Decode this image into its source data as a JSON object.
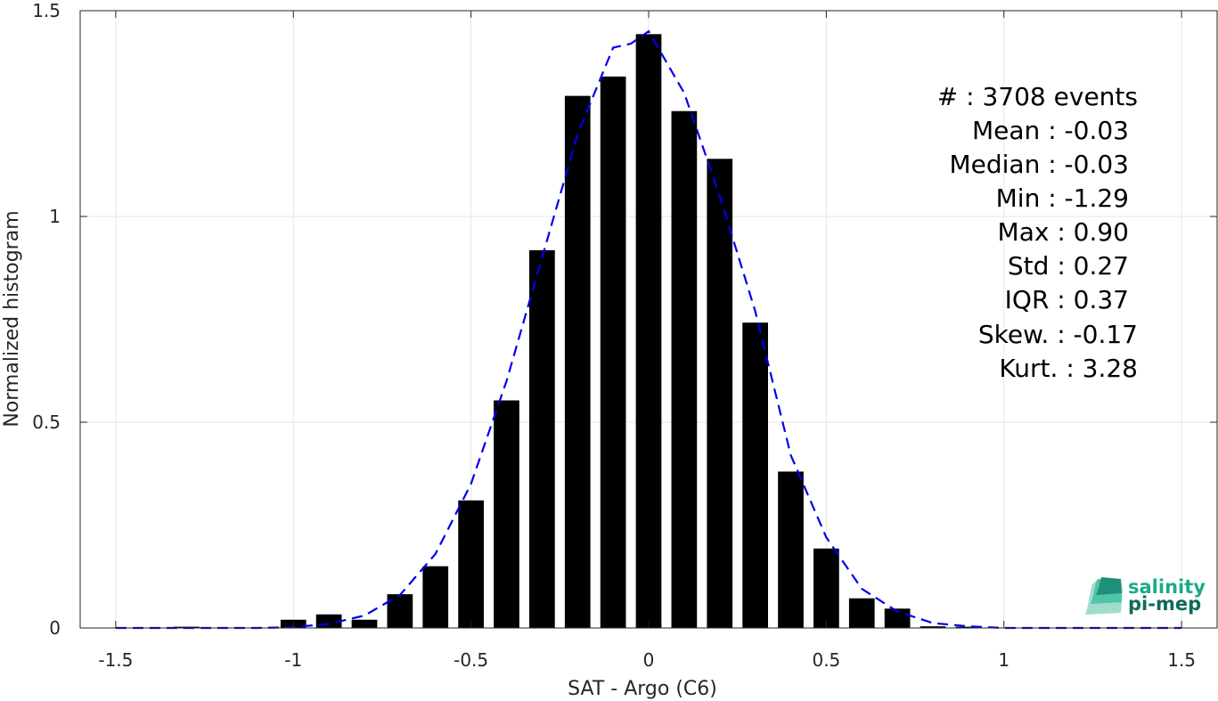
{
  "chart_data": {
    "type": "bar",
    "xlabel": "SAT - Argo (C6)",
    "ylabel": "Normalized histogram",
    "xlim": [
      -1.6,
      1.6
    ],
    "ylim": [
      0,
      1.5
    ],
    "xticks": [
      -1.5,
      -1,
      -0.5,
      0,
      0.5,
      1,
      1.5
    ],
    "xtick_labels": [
      "-1.5",
      "-1",
      "-0.5",
      "0",
      "0.5",
      "1",
      "1.5"
    ],
    "yticks": [
      0,
      0.5,
      1,
      1.5
    ],
    "ytick_labels": [
      "0",
      "0.5",
      "1",
      "1.5"
    ],
    "grid": true,
    "bar_color": "#000000",
    "bar_width": 0.072,
    "bars": {
      "x": [
        -1.3,
        -1.2,
        -1.1,
        -1.0,
        -0.9,
        -0.8,
        -0.7,
        -0.6,
        -0.5,
        -0.4,
        -0.3,
        -0.2,
        -0.1,
        0.0,
        0.1,
        0.2,
        0.3,
        0.4,
        0.5,
        0.6,
        0.7,
        0.8,
        0.9
      ],
      "y": [
        0.003,
        0.0,
        0.0,
        0.02,
        0.033,
        0.02,
        0.082,
        0.15,
        0.31,
        0.553,
        0.918,
        1.293,
        1.34,
        1.443,
        1.256,
        1.14,
        0.742,
        0.38,
        0.193,
        0.072,
        0.047,
        0.004,
        0.003
      ]
    },
    "fit_curve": {
      "style": "dashed",
      "color": "#0000ee",
      "x": [
        -1.5,
        -1.4,
        -1.3,
        -1.2,
        -1.1,
        -1.0,
        -0.9,
        -0.8,
        -0.7,
        -0.6,
        -0.5,
        -0.4,
        -0.3,
        -0.2,
        -0.1,
        -0.05,
        0.0,
        0.1,
        0.2,
        0.3,
        0.4,
        0.5,
        0.6,
        0.7,
        0.8,
        0.9,
        1.0,
        1.1,
        1.2,
        1.3,
        1.4,
        1.5
      ],
      "y": [
        0.0,
        0.0,
        0.0,
        0.0,
        0.0,
        0.002,
        0.01,
        0.03,
        0.08,
        0.18,
        0.35,
        0.6,
        0.9,
        1.2,
        1.41,
        1.42,
        1.45,
        1.3,
        1.05,
        0.77,
        0.42,
        0.22,
        0.095,
        0.04,
        0.012,
        0.004,
        0.0,
        0.0,
        0.0,
        0.0,
        0.0,
        0.0
      ]
    }
  },
  "stats": {
    "events": "#  : 3708 events",
    "mean": "Mean : -0.03",
    "median": "Median : -0.03",
    "min": "Min : -1.29",
    "max": "Max : 0.90",
    "std": "Std : 0.27",
    "iqr": "IQR : 0.37",
    "skew": "Skew. : -0.17",
    "kurt": "Kurt. : 3.28"
  },
  "logo": {
    "line1": "salinity",
    "line2": "pi-mep",
    "color1": "#1aab8a",
    "color2": "#0e6a5a"
  }
}
